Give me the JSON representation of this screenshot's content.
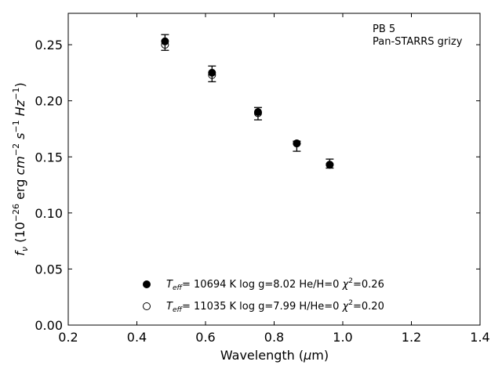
{
  "chart_data": {
    "type": "scatter",
    "title": "",
    "xlabel": "Wavelength (μm)",
    "ylabel": "fν (10⁻²⁶ erg cm⁻² s⁻¹ Hz⁻¹)",
    "xlim": [
      0.2,
      1.4
    ],
    "ylim": [
      0.0,
      0.278
    ],
    "xticks": [
      "0.2",
      "0.4",
      "0.6",
      "0.8",
      "1.0",
      "1.2",
      "1.4"
    ],
    "yticks": [
      "0.00",
      "0.05",
      "0.10",
      "0.15",
      "0.20",
      "0.25"
    ],
    "grid": false,
    "annotation": [
      "PB 5",
      "Pan-STARRS grizy"
    ],
    "observed": {
      "x": [
        0.482,
        0.619,
        0.753,
        0.866,
        0.962
      ],
      "y": [
        0.252,
        0.224,
        0.189,
        0.16,
        0.144
      ],
      "yerr_low": [
        0.007,
        0.007,
        0.006,
        0.005,
        0.004
      ],
      "yerr_high": [
        0.007,
        0.007,
        0.005,
        0.004,
        0.004
      ]
    },
    "series": [
      {
        "name": "T_eff= 10694 K  log g=8.02  He/H=0  χ²=0.26",
        "marker": "filled-circle",
        "x": [
          0.482,
          0.619,
          0.753,
          0.866,
          0.962
        ],
        "y": [
          0.253,
          0.225,
          0.19,
          0.162,
          0.143
        ]
      },
      {
        "name": "T_eff= 11035 K  log g=7.99  H/He=0  χ²=0.20",
        "marker": "open-circle",
        "x": [
          0.482,
          0.619,
          0.753,
          0.866,
          0.962
        ],
        "y": [
          0.25,
          0.223,
          0.189,
          0.162,
          0.143
        ]
      }
    ],
    "legend": [
      {
        "teff_label": "T",
        "teff_sub": "eff",
        "rest": "= 10694 K  log g=8.02  He/H=0  ",
        "chi": "χ",
        "chi_sup": "2",
        "chi_val": "=0.26"
      },
      {
        "teff_label": "T",
        "teff_sub": "eff",
        "rest": "= 11035 K  log g=7.99  H/He=0  ",
        "chi": "χ",
        "chi_sup": "2",
        "chi_val": "=0.20"
      }
    ],
    "legend_position": "lower-center",
    "colors": {
      "marker": "#000000",
      "axis": "#000000"
    }
  }
}
